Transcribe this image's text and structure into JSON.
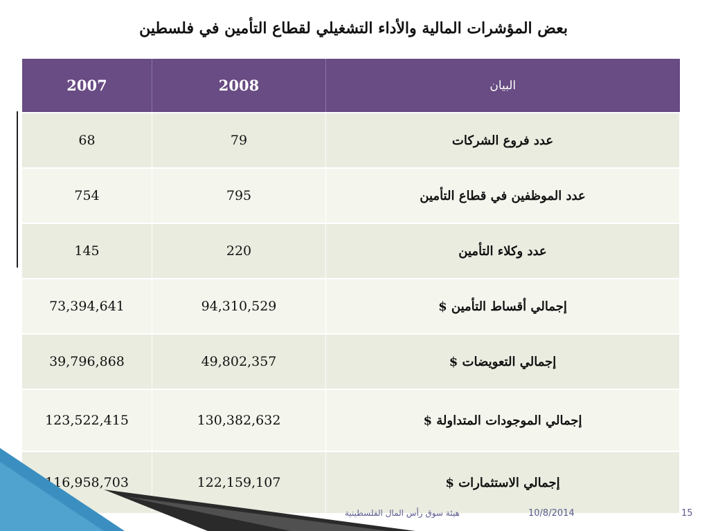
{
  "slide": {
    "title": "بعض المؤشرات المالية والأداء التشغيلي لقطاع التأمين في فلسطين"
  },
  "table": {
    "headers": [
      "2007",
      "2008",
      "البيان"
    ],
    "rows": [
      {
        "label": "عدد فروع الشركات",
        "y2008": "79",
        "y2007": "68"
      },
      {
        "label": "عدد الموظفين في قطاع التأمين",
        "y2008": "795",
        "y2007": "754"
      },
      {
        "label": "عدد وكلاء التأمين",
        "y2008": "220",
        "y2007": "145"
      },
      {
        "label": "إجمالي أقساط التأمين $",
        "y2008": "94,310,529",
        "y2007": "73,394,641"
      },
      {
        "label": "إجمالي التعويضات $",
        "y2008": "49,802,357",
        "y2007": "39,796,868"
      },
      {
        "label": "إجمالي الموجودات المتداولة $",
        "y2008": "130,382,632",
        "y2007": "123,522,415"
      },
      {
        "label": "إجمالي الاستثمارات $",
        "y2008": "122,159,107",
        "y2007": "116,958,703"
      }
    ]
  },
  "footer": {
    "organization": "هيئة سوق رأس المال الفلسطينية",
    "date": "10/8/2014",
    "page_number": "15"
  },
  "colors": {
    "header_bg": "#684c83",
    "row_odd": "#e9ecdf",
    "row_even": "#f4f6ee",
    "deco_blue": "#3b8fc0"
  }
}
